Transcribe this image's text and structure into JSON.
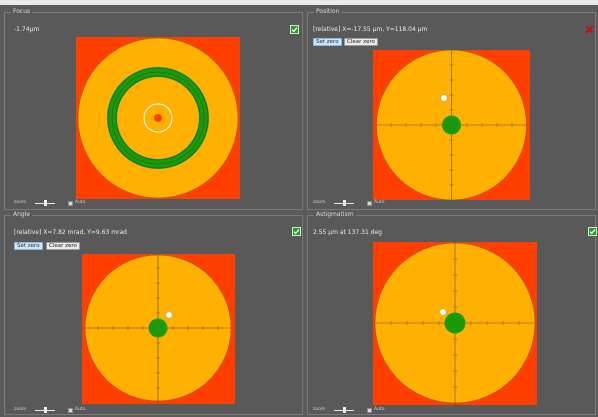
{
  "panels": {
    "focus": {
      "title": "Focus",
      "readout": "-1.74µm",
      "status": "ok",
      "zoom_label": "zoom",
      "auto_label": "Auto"
    },
    "position": {
      "title": "Position",
      "readout": "[relative] X=-17.55 µm, Y=118.04 µm",
      "status": "error",
      "set_zero": "Set zero",
      "clear_zero": "Clear zero",
      "zoom_label": "zoom",
      "auto_label": "Auto"
    },
    "angle": {
      "title": "Angle",
      "readout": "[relative] X=7.82 mrad, Y=9.63 mrad",
      "status": "ok",
      "set_zero": "Set zero",
      "clear_zero": "Clear zero",
      "zoom_label": "zoom",
      "auto_label": "Auto"
    },
    "astigmatism": {
      "title": "Astigmatism",
      "readout": "2.55 µm at 137.31 deg",
      "status": "ok",
      "zoom_label": "zoom",
      "auto_label": "Auto"
    }
  },
  "colors": {
    "background_red": "#ff3f00",
    "disk_orange": "#ffb000",
    "target_green": "#1a9a0a",
    "status_green": "#22a020",
    "status_red": "#e00000"
  }
}
